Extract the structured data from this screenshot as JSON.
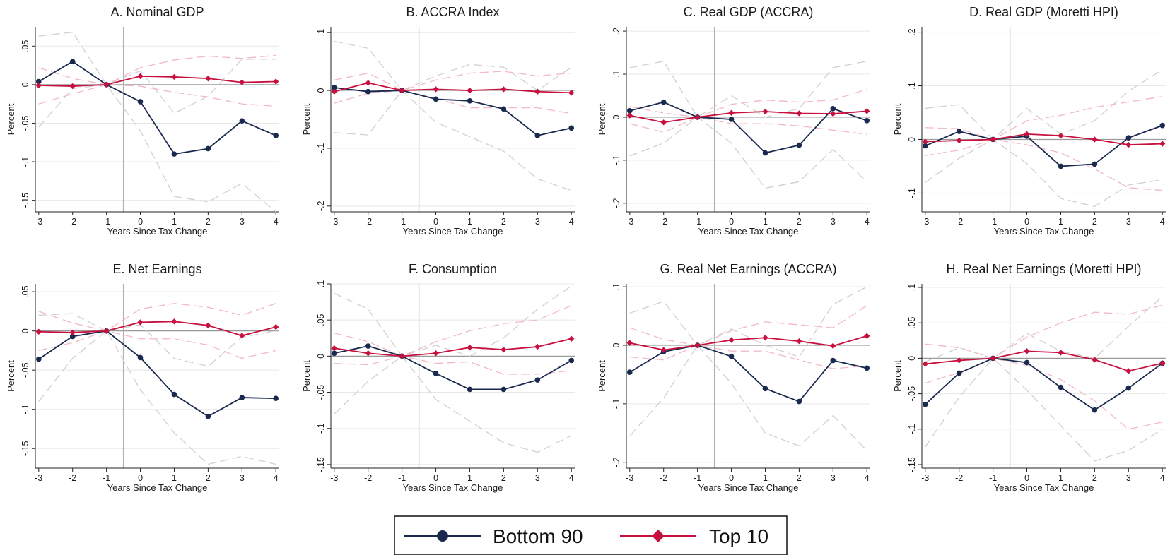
{
  "legend": {
    "items": [
      {
        "label": "Bottom 90",
        "color": "#1a2a4f",
        "marker": "circle"
      },
      {
        "label": "Top 10",
        "color": "#c8103e",
        "marker": "diamond"
      }
    ]
  },
  "chart_data": [
    {
      "type": "line",
      "title": "A. Nominal GDP",
      "xlabel": "Years Since Tax Change",
      "ylabel": "Percent",
      "x": [
        -3,
        -2,
        -1,
        0,
        1,
        2,
        3,
        4
      ],
      "xlim": [
        -3.1,
        4.1
      ],
      "ylim": [
        -0.165,
        0.075
      ],
      "yticks": [
        0.05,
        0,
        -0.05,
        -0.1,
        -0.15
      ],
      "ytick_labels": [
        ".05",
        "0",
        "-.05",
        "-.1",
        "-.15"
      ],
      "event_line_x": -0.5,
      "grid": true,
      "series": [
        {
          "name": "Bottom 90",
          "values": [
            0.004,
            0.03,
            0.0,
            -0.022,
            -0.09,
            -0.083,
            -0.047,
            -0.066
          ],
          "ci_low": [
            -0.055,
            -0.005,
            0.0,
            -0.06,
            -0.145,
            -0.152,
            -0.128,
            -0.165
          ],
          "ci_high": [
            0.063,
            0.068,
            0.0,
            0.018,
            -0.037,
            -0.015,
            0.033,
            0.033
          ]
        },
        {
          "name": "Top 10",
          "values": [
            -0.001,
            -0.002,
            0.0,
            0.011,
            0.01,
            0.008,
            0.003,
            0.004
          ],
          "ci_low": [
            -0.025,
            -0.012,
            0.0,
            -0.002,
            -0.01,
            -0.016,
            -0.025,
            -0.028
          ],
          "ci_high": [
            0.022,
            0.008,
            0.0,
            0.022,
            0.032,
            0.037,
            0.034,
            0.038
          ]
        }
      ]
    },
    {
      "type": "line",
      "title": "B. ACCRA Index",
      "xlabel": "Years Since Tax Change",
      "ylabel": "Percent",
      "x": [
        -3,
        -2,
        -1,
        0,
        1,
        2,
        3,
        4
      ],
      "xlim": [
        -3.1,
        4.1
      ],
      "ylim": [
        -0.21,
        0.11
      ],
      "yticks": [
        0.1,
        0,
        -0.1,
        -0.2
      ],
      "ytick_labels": [
        ".1",
        "0",
        "-.1",
        "-.2"
      ],
      "event_line_x": -0.5,
      "grid": true,
      "series": [
        {
          "name": "Bottom 90",
          "values": [
            0.005,
            -0.002,
            0.0,
            -0.015,
            -0.018,
            -0.032,
            -0.078,
            -0.065
          ],
          "ci_low": [
            -0.073,
            -0.077,
            0.0,
            -0.055,
            -0.08,
            -0.105,
            -0.153,
            -0.173
          ],
          "ci_high": [
            0.085,
            0.073,
            0.0,
            0.025,
            0.045,
            0.04,
            0.0,
            0.04
          ]
        },
        {
          "name": "Top 10",
          "values": [
            -0.002,
            0.013,
            0.0,
            0.002,
            0.0,
            0.002,
            -0.002,
            -0.004
          ],
          "ci_low": [
            -0.022,
            -0.005,
            0.0,
            -0.014,
            -0.03,
            -0.03,
            -0.03,
            -0.04
          ],
          "ci_high": [
            0.018,
            0.03,
            0.0,
            0.018,
            0.03,
            0.033,
            0.025,
            0.03
          ]
        }
      ]
    },
    {
      "type": "line",
      "title": "C. Real GDP (ACCRA)",
      "xlabel": "Years Since Tax Change",
      "ylabel": "Percent",
      "x": [
        -3,
        -2,
        -1,
        0,
        1,
        2,
        3,
        4
      ],
      "xlim": [
        -3.1,
        4.1
      ],
      "ylim": [
        -0.22,
        0.21
      ],
      "yticks": [
        0.2,
        0.1,
        0,
        -0.1,
        -0.2
      ],
      "ytick_labels": [
        ".2",
        ".1",
        "0",
        "-.1",
        "-.2"
      ],
      "event_line_x": -0.5,
      "grid": true,
      "series": [
        {
          "name": "Bottom 90",
          "values": [
            0.015,
            0.035,
            0.0,
            -0.005,
            -0.083,
            -0.065,
            0.02,
            -0.008
          ],
          "ci_low": [
            -0.09,
            -0.06,
            0.0,
            -0.06,
            -0.165,
            -0.15,
            -0.075,
            -0.15
          ],
          "ci_high": [
            0.115,
            0.13,
            0.0,
            0.05,
            0.0,
            0.02,
            0.115,
            0.13
          ]
        },
        {
          "name": "Top 10",
          "values": [
            0.004,
            -0.012,
            0.0,
            0.01,
            0.013,
            0.009,
            0.008,
            0.014
          ],
          "ci_low": [
            -0.015,
            -0.035,
            0.0,
            -0.015,
            -0.015,
            -0.02,
            -0.03,
            -0.04
          ],
          "ci_high": [
            0.025,
            0.01,
            0.0,
            0.03,
            0.04,
            0.035,
            0.04,
            0.065
          ]
        }
      ]
    },
    {
      "type": "line",
      "title": "D. Real GDP (Moretti HPI)",
      "xlabel": "Years Since Tax Change",
      "ylabel": "Percent",
      "x": [
        -3,
        -2,
        -1,
        0,
        1,
        2,
        3,
        4
      ],
      "xlim": [
        -3.1,
        4.1
      ],
      "ylim": [
        -0.135,
        0.21
      ],
      "yticks": [
        0.2,
        0.1,
        0,
        -0.1
      ],
      "ytick_labels": [
        ".2",
        ".1",
        "0",
        "-.1"
      ],
      "event_line_x": -0.5,
      "grid": true,
      "series": [
        {
          "name": "Bottom 90",
          "values": [
            -0.012,
            0.015,
            0.0,
            0.006,
            -0.05,
            -0.046,
            0.003,
            0.026
          ],
          "ci_low": [
            -0.08,
            -0.035,
            0.0,
            -0.045,
            -0.11,
            -0.125,
            -0.085,
            -0.075
          ],
          "ci_high": [
            0.058,
            0.065,
            0.0,
            0.058,
            0.01,
            0.035,
            0.09,
            0.13
          ]
        },
        {
          "name": "Top 10",
          "values": [
            -0.004,
            -0.002,
            0.0,
            0.01,
            0.007,
            0.0,
            -0.01,
            -0.008
          ],
          "ci_low": [
            -0.03,
            -0.02,
            0.0,
            -0.01,
            -0.025,
            -0.055,
            -0.09,
            -0.095
          ],
          "ci_high": [
            0.022,
            0.02,
            0.0,
            0.035,
            0.045,
            0.06,
            0.07,
            0.08
          ]
        }
      ]
    },
    {
      "type": "line",
      "title": "E. Net Earnings",
      "xlabel": "Years Since Tax Change",
      "ylabel": "Percent",
      "x": [
        -3,
        -2,
        -1,
        0,
        1,
        2,
        3,
        4
      ],
      "xlim": [
        -3.1,
        4.1
      ],
      "ylim": [
        -0.175,
        0.06
      ],
      "yticks": [
        0.05,
        0,
        -0.05,
        -0.1,
        -0.15
      ],
      "ytick_labels": [
        ".05",
        "0",
        "-.05",
        "-.1",
        "-.15"
      ],
      "event_line_x": -0.5,
      "grid": true,
      "series": [
        {
          "name": "Bottom 90",
          "values": [
            -0.036,
            -0.007,
            0.0,
            -0.034,
            -0.081,
            -0.109,
            -0.085,
            -0.086
          ],
          "ci_low": [
            -0.09,
            -0.035,
            0.0,
            -0.075,
            -0.13,
            -0.17,
            -0.16,
            -0.17
          ],
          "ci_high": [
            0.02,
            0.022,
            0.0,
            0.008,
            -0.035,
            -0.045,
            -0.008,
            0.0
          ]
        },
        {
          "name": "Top 10",
          "values": [
            -0.001,
            -0.002,
            0.0,
            0.011,
            0.012,
            0.007,
            -0.006,
            0.005
          ],
          "ci_low": [
            -0.025,
            -0.015,
            0.0,
            -0.01,
            -0.01,
            -0.018,
            -0.035,
            -0.025
          ],
          "ci_high": [
            0.025,
            0.01,
            0.0,
            0.028,
            0.035,
            0.03,
            0.02,
            0.035
          ]
        }
      ]
    },
    {
      "type": "line",
      "title": "F. Consumption",
      "xlabel": "Years Since Tax Change",
      "ylabel": "Percent",
      "x": [
        -3,
        -2,
        -1,
        0,
        1,
        2,
        3,
        4
      ],
      "xlim": [
        -3.1,
        4.1
      ],
      "ylim": [
        -0.155,
        0.1
      ],
      "yticks": [
        0.1,
        0.05,
        0,
        -0.05,
        -0.1,
        -0.15
      ],
      "ytick_labels": [
        ".1",
        ".05",
        "0",
        "-.05",
        "-.1",
        "-.15"
      ],
      "event_line_x": -0.5,
      "grid": true,
      "series": [
        {
          "name": "Bottom 90",
          "values": [
            0.004,
            0.014,
            0.0,
            -0.024,
            -0.046,
            -0.046,
            -0.033,
            -0.006
          ],
          "ci_low": [
            -0.08,
            -0.035,
            0.0,
            -0.06,
            -0.09,
            -0.12,
            -0.133,
            -0.11
          ],
          "ci_high": [
            0.087,
            0.065,
            0.0,
            0.015,
            0.0,
            0.025,
            0.065,
            0.097
          ]
        },
        {
          "name": "Top 10",
          "values": [
            0.011,
            0.004,
            0.0,
            0.004,
            0.012,
            0.009,
            0.013,
            0.024
          ],
          "ci_low": [
            -0.01,
            -0.012,
            0.0,
            -0.01,
            -0.008,
            -0.025,
            -0.025,
            -0.02
          ],
          "ci_high": [
            0.032,
            0.02,
            0.0,
            0.02,
            0.035,
            0.045,
            0.05,
            0.07
          ]
        }
      ]
    },
    {
      "type": "line",
      "title": "G. Real Net Earnings (ACCRA)",
      "xlabel": "Years Since Tax Change",
      "ylabel": "Percent",
      "x": [
        -3,
        -2,
        -1,
        0,
        1,
        2,
        3,
        4
      ],
      "xlim": [
        -3.1,
        4.1
      ],
      "ylim": [
        -0.21,
        0.105
      ],
      "yticks": [
        0.1,
        0,
        -0.1,
        -0.2
      ],
      "ytick_labels": [
        ".1",
        "0",
        "-.1",
        "-.2"
      ],
      "event_line_x": -0.5,
      "grid": true,
      "series": [
        {
          "name": "Bottom 90",
          "values": [
            -0.046,
            -0.011,
            0.0,
            -0.019,
            -0.074,
            -0.096,
            -0.026,
            -0.039
          ],
          "ci_low": [
            -0.155,
            -0.09,
            0.0,
            -0.065,
            -0.15,
            -0.172,
            -0.12,
            -0.18
          ],
          "ci_high": [
            0.055,
            0.075,
            0.0,
            0.028,
            0.0,
            -0.02,
            0.07,
            0.1
          ]
        },
        {
          "name": "Top 10",
          "values": [
            0.004,
            -0.008,
            0.0,
            0.009,
            0.013,
            0.007,
            -0.001,
            0.016
          ],
          "ci_low": [
            -0.02,
            -0.025,
            0.0,
            -0.01,
            -0.01,
            -0.025,
            -0.04,
            -0.035
          ],
          "ci_high": [
            0.03,
            0.01,
            0.0,
            0.025,
            0.04,
            0.035,
            0.03,
            0.068
          ]
        }
      ]
    },
    {
      "type": "line",
      "title": "H. Real Net Earnings (Moretti HPI)",
      "xlabel": "Years Since Tax Change",
      "ylabel": "Percent",
      "x": [
        -3,
        -2,
        -1,
        0,
        1,
        2,
        3,
        4
      ],
      "xlim": [
        -3.1,
        4.1
      ],
      "ylim": [
        -0.155,
        0.105
      ],
      "yticks": [
        0.1,
        0.05,
        0,
        -0.05,
        -0.1,
        -0.15
      ],
      "ytick_labels": [
        ".1",
        ".05",
        "0",
        "-.05",
        "-.1",
        "-.15"
      ],
      "event_line_x": -0.5,
      "grid": true,
      "series": [
        {
          "name": "Bottom 90",
          "values": [
            -0.065,
            -0.021,
            0.0,
            -0.006,
            -0.041,
            -0.073,
            -0.042,
            -0.007
          ],
          "ci_low": [
            -0.125,
            -0.055,
            0.0,
            -0.045,
            -0.095,
            -0.145,
            -0.13,
            -0.1
          ],
          "ci_high": [
            -0.005,
            0.015,
            0.0,
            0.035,
            0.01,
            0.0,
            0.045,
            0.087
          ]
        },
        {
          "name": "Top 10",
          "values": [
            -0.008,
            -0.003,
            0.0,
            0.01,
            0.008,
            -0.002,
            -0.018,
            -0.007
          ],
          "ci_low": [
            -0.035,
            -0.02,
            0.0,
            -0.01,
            -0.03,
            -0.06,
            -0.1,
            -0.09
          ],
          "ci_high": [
            0.02,
            0.015,
            0.0,
            0.03,
            0.05,
            0.065,
            0.062,
            0.075
          ]
        }
      ]
    }
  ]
}
